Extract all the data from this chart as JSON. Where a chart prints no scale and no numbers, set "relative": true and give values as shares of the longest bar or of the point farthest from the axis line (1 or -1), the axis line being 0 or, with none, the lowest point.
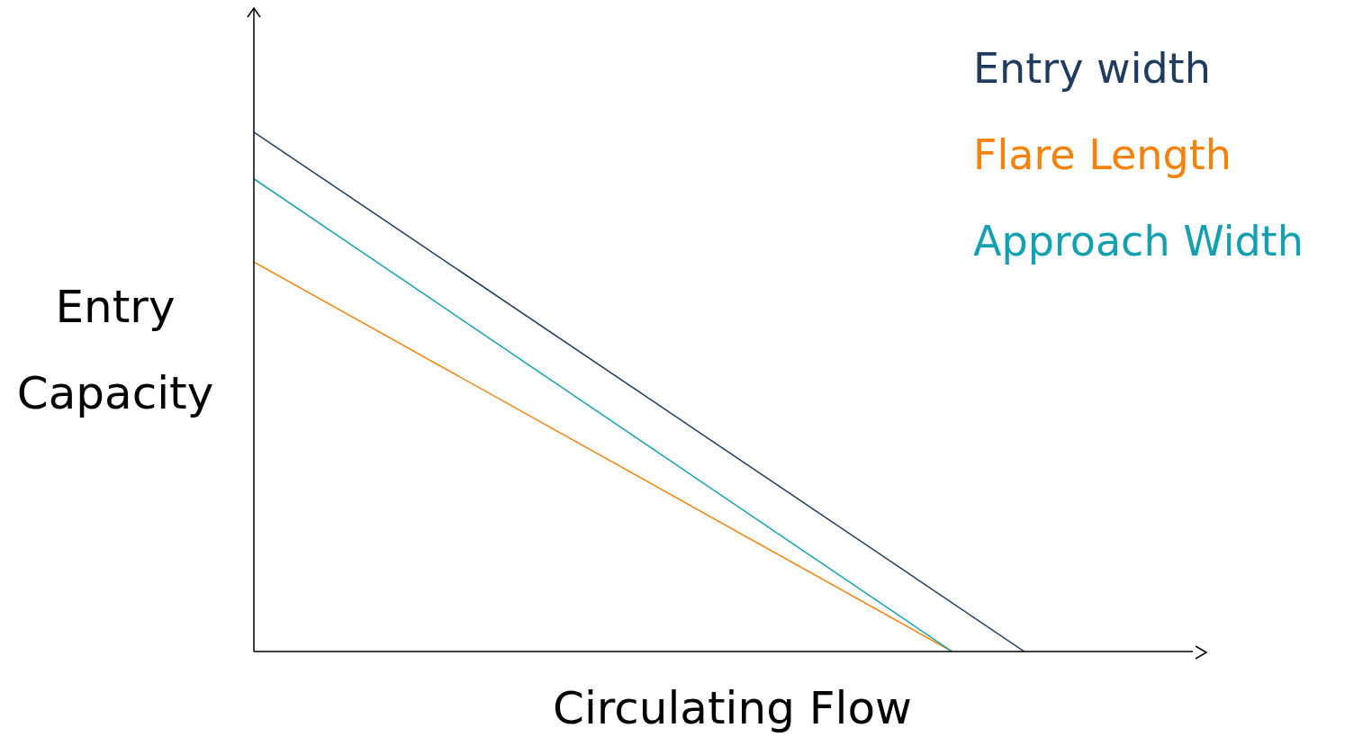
{
  "chart_data": {
    "type": "line",
    "relative": true,
    "xlabel": "Circulating Flow",
    "ylabel": "Entry Capacity",
    "legend": "top right",
    "marker": "none",
    "line_style": "solid",
    "grid": false,
    "categories": [
      null,
      null,
      null,
      null,
      null,
      null,
      null,
      null,
      null,
      null,
      null,
      null,
      null,
      null,
      null,
      null,
      null,
      null,
      null,
      null,
      null,
      null,
      null,
      null,
      null,
      null,
      null,
      null,
      null,
      null,
      null,
      null,
      null,
      null,
      null,
      null,
      null,
      null,
      null,
      null
    ],
    "series": [
      {
        "name": "Entry width",
        "color": "#1f3b5e",
        "values": [
          1,
          null,
          null,
          null,
          null,
          null,
          null,
          null,
          null,
          null,
          null,
          null,
          null,
          null,
          null,
          null,
          null,
          null,
          null,
          null,
          null,
          null,
          null,
          null,
          null,
          null,
          null,
          null,
          null,
          null,
          null,
          null,
          0,
          null,
          null,
          null,
          null,
          null,
          null,
          null
        ]
      },
      {
        "name": "Flare Length",
        "color": "#f5820a",
        "values": [
          0.75,
          null,
          null,
          null,
          null,
          null,
          null,
          null,
          null,
          null,
          null,
          null,
          null,
          null,
          null,
          null,
          null,
          null,
          null,
          null,
          null,
          null,
          null,
          null,
          null,
          null,
          null,
          null,
          null,
          0,
          null,
          null,
          null,
          null,
          null,
          null,
          null,
          null,
          null,
          null
        ]
      },
      {
        "name": "Approach Width",
        "color": "#13a0b0",
        "values": [
          0.91,
          null,
          null,
          null,
          null,
          null,
          null,
          null,
          null,
          null,
          null,
          null,
          null,
          null,
          null,
          null,
          null,
          null,
          null,
          null,
          null,
          null,
          null,
          null,
          null,
          null,
          null,
          null,
          null,
          0,
          null,
          null,
          null,
          null,
          null,
          null,
          null,
          null,
          null,
          null
        ]
      }
    ]
  }
}
